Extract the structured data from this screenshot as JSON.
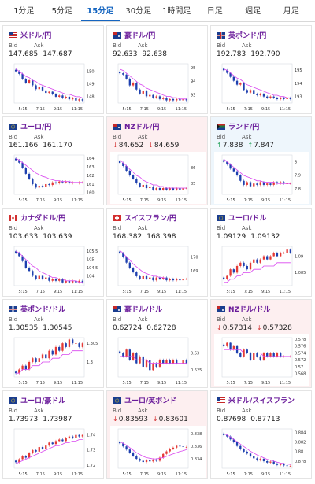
{
  "tabs": [
    {
      "label": "1分足",
      "active": false
    },
    {
      "label": "5分足",
      "active": false
    },
    {
      "label": "15分足",
      "active": true
    },
    {
      "label": "30分足",
      "active": false
    },
    {
      "label": "1時間足",
      "active": false
    },
    {
      "label": "日足",
      "active": false
    },
    {
      "label": "週足",
      "active": false
    },
    {
      "label": "月足",
      "active": false
    }
  ],
  "labels": {
    "bid": "Bid",
    "ask": "Ask"
  },
  "colors": {
    "up": "#1b9e52",
    "down": "#d32f2f",
    "accent": "#1565c0",
    "name": "#6a1b9a",
    "ma": "#d946ef",
    "candle_up": "#e53935",
    "candle_down": "#1e40af"
  },
  "cards": [
    {
      "name": "米ドル/円",
      "flag": "us",
      "bid": "147.685",
      "ask": "147.687",
      "trend": "none",
      "chart_data": {
        "type": "candlestick",
        "x_ticks": [
          "5:15",
          "7:15",
          "9:15",
          "11:15"
        ],
        "y_ticks": [
          "150",
          "149",
          "148"
        ],
        "ylim": [
          147.5,
          150.6
        ],
        "close": [
          150.0,
          149.8,
          149.4,
          149.1,
          149.3,
          148.9,
          148.6,
          148.8,
          148.5,
          148.3,
          148.4,
          148.2,
          148.0,
          148.1,
          147.9,
          148.0,
          147.8,
          147.9,
          147.7,
          147.8,
          147.7
        ],
        "ma": [
          150.2,
          150.0,
          149.8,
          149.6,
          149.5,
          149.3,
          149.2,
          149.0,
          148.9,
          148.8,
          148.7,
          148.6,
          148.5,
          148.4,
          148.3,
          148.2,
          148.2,
          148.1,
          148.0,
          148.0,
          147.9
        ]
      }
    },
    {
      "name": "豪ドル/円",
      "flag": "au",
      "bid": "92.633",
      "ask": "92.638",
      "trend": "none",
      "chart_data": {
        "type": "candlestick",
        "x_ticks": [
          "5:15",
          "7:15",
          "9:15",
          "11:15"
        ],
        "y_ticks": [
          "95",
          "94",
          "93"
        ],
        "ylim": [
          92.4,
          95.3
        ],
        "close": [
          94.6,
          94.5,
          94.2,
          93.7,
          93.9,
          93.4,
          93.1,
          93.3,
          92.9,
          93.0,
          92.8,
          92.9,
          92.7,
          92.8,
          92.6,
          92.7,
          92.6,
          92.7,
          92.6,
          92.7,
          92.6
        ],
        "ma": [
          94.9,
          94.8,
          94.6,
          94.4,
          94.2,
          94.0,
          93.8,
          93.7,
          93.5,
          93.4,
          93.3,
          93.2,
          93.1,
          93.0,
          92.9,
          92.9,
          92.8,
          92.8,
          92.7,
          92.7,
          92.7
        ]
      }
    },
    {
      "name": "英ポンド/円",
      "flag": "gb",
      "bid": "192.783",
      "ask": "192.790",
      "trend": "none",
      "chart_data": {
        "type": "candlestick",
        "x_ticks": [
          "5:15",
          "7:15",
          "9:15",
          "11:15"
        ],
        "y_ticks": [
          "195",
          "194",
          "193"
        ],
        "ylim": [
          192.5,
          195.5
        ],
        "close": [
          195.0,
          194.8,
          194.5,
          194.2,
          193.9,
          194.0,
          193.5,
          193.3,
          193.5,
          193.2,
          193.1,
          193.2,
          193.0,
          192.9,
          193.0,
          192.9,
          192.8,
          192.9,
          192.8,
          192.9,
          192.8
        ],
        "ma": [
          195.1,
          195.0,
          194.8,
          194.6,
          194.4,
          194.3,
          194.1,
          193.9,
          193.8,
          193.7,
          193.6,
          193.5,
          193.4,
          193.3,
          193.2,
          193.1,
          193.1,
          193.0,
          193.0,
          192.9,
          192.9
        ]
      }
    },
    {
      "name": "ユーロ/円",
      "flag": "eu",
      "bid": "161.166",
      "ask": "161.170",
      "trend": "none",
      "chart_data": {
        "type": "candlestick",
        "x_ticks": [
          "5:15",
          "7:15",
          "9:15",
          "11:15"
        ],
        "y_ticks": [
          "164",
          "163",
          "162",
          "161",
          "160"
        ],
        "ylim": [
          159.8,
          164.4
        ],
        "close": [
          163.8,
          163.5,
          162.9,
          162.2,
          161.6,
          161.0,
          160.6,
          160.8,
          160.7,
          161.0,
          160.9,
          161.2,
          161.1,
          161.3,
          161.2,
          161.3,
          161.1,
          161.2,
          161.1,
          161.2,
          161.2
        ],
        "ma": [
          164.0,
          163.8,
          163.5,
          163.2,
          162.9,
          162.6,
          162.3,
          162.1,
          161.9,
          161.8,
          161.6,
          161.5,
          161.4,
          161.4,
          161.3,
          161.3,
          161.3,
          161.2,
          161.2,
          161.2,
          161.2
        ]
      }
    },
    {
      "name": "NZドル/円",
      "flag": "nz",
      "bid": "84.652",
      "ask": "84.659",
      "trend": "down",
      "chart_data": {
        "type": "candlestick",
        "x_ticks": [
          "5:15",
          "7:15",
          "9:15",
          "11:15"
        ],
        "y_ticks": [
          "86",
          "85"
        ],
        "ylim": [
          84.3,
          86.8
        ],
        "close": [
          86.3,
          86.1,
          85.8,
          85.5,
          85.3,
          85.0,
          84.8,
          84.9,
          84.7,
          84.8,
          84.6,
          84.7,
          84.6,
          84.7,
          84.6,
          84.7,
          84.6,
          84.7,
          84.6,
          84.7,
          84.7
        ],
        "ma": [
          86.5,
          86.3,
          86.1,
          85.9,
          85.7,
          85.5,
          85.4,
          85.2,
          85.1,
          85.0,
          84.9,
          84.9,
          84.8,
          84.8,
          84.7,
          84.7,
          84.7,
          84.7,
          84.7,
          84.7,
          84.7
        ]
      }
    },
    {
      "name": "ランド/円",
      "flag": "za",
      "bid": "7.838",
      "ask": "7.847",
      "trend": "up",
      "chart_data": {
        "type": "candlestick",
        "x_ticks": [
          "5:15",
          "7:15",
          "9:15",
          "11:15"
        ],
        "y_ticks": [
          "8",
          "7.9",
          "7.8"
        ],
        "ylim": [
          7.76,
          8.05
        ],
        "close": [
          8.0,
          7.98,
          7.95,
          7.93,
          7.9,
          7.86,
          7.83,
          7.85,
          7.82,
          7.84,
          7.83,
          7.85,
          7.83,
          7.84,
          7.83,
          7.85,
          7.84,
          7.85,
          7.84,
          7.84,
          7.84
        ],
        "ma": [
          8.02,
          8.0,
          7.98,
          7.96,
          7.94,
          7.92,
          7.9,
          7.89,
          7.88,
          7.87,
          7.86,
          7.86,
          7.85,
          7.85,
          7.85,
          7.85,
          7.84,
          7.84,
          7.84,
          7.84,
          7.84
        ]
      }
    },
    {
      "name": "カナダドル/円",
      "flag": "ca",
      "bid": "103.633",
      "ask": "103.639",
      "trend": "none",
      "chart_data": {
        "type": "candlestick",
        "x_ticks": [
          "5:15",
          "7:15",
          "9:15",
          "11:15"
        ],
        "y_ticks": [
          "105.5",
          "105",
          "104.5",
          "104"
        ],
        "ylim": [
          103.4,
          105.8
        ],
        "close": [
          105.4,
          105.2,
          104.9,
          104.5,
          104.3,
          104.0,
          103.8,
          104.0,
          103.8,
          103.9,
          103.7,
          103.8,
          103.7,
          103.8,
          103.6,
          103.7,
          103.6,
          103.7,
          103.6,
          103.7,
          103.6
        ],
        "ma": [
          105.5,
          105.4,
          105.2,
          105.0,
          104.8,
          104.6,
          104.5,
          104.3,
          104.2,
          104.1,
          104.0,
          103.9,
          103.9,
          103.8,
          103.8,
          103.7,
          103.7,
          103.7,
          103.7,
          103.6,
          103.6
        ]
      }
    },
    {
      "name": "スイスフラン/円",
      "flag": "ch",
      "bid": "168.382",
      "ask": "168.398",
      "trend": "none",
      "chart_data": {
        "type": "candlestick",
        "x_ticks": [
          "5:15",
          "7:15",
          "9:15",
          "11:15"
        ],
        "y_ticks": [
          "170",
          "169"
        ],
        "ylim": [
          167.9,
          170.8
        ],
        "close": [
          170.3,
          170.0,
          169.6,
          169.2,
          168.9,
          168.6,
          168.4,
          168.6,
          168.4,
          168.5,
          168.3,
          168.5,
          168.4,
          168.5,
          168.3,
          168.4,
          168.3,
          168.4,
          168.3,
          168.4,
          168.4
        ],
        "ma": [
          170.5,
          170.3,
          170.0,
          169.8,
          169.5,
          169.3,
          169.1,
          168.9,
          168.8,
          168.7,
          168.6,
          168.6,
          168.5,
          168.5,
          168.4,
          168.4,
          168.4,
          168.4,
          168.4,
          168.4,
          168.4
        ]
      }
    },
    {
      "name": "ユーロ/ドル",
      "flag": "eu",
      "bid": "1.09129",
      "ask": "1.09132",
      "trend": "none",
      "chart_data": {
        "type": "candlestick",
        "x_ticks": [
          "5:15",
          "7:15",
          "9:15",
          "11:15"
        ],
        "y_ticks": [
          "1.09",
          "1.085"
        ],
        "ylim": [
          1.081,
          1.093
        ],
        "close": [
          1.083,
          1.084,
          1.086,
          1.085,
          1.087,
          1.088,
          1.087,
          1.086,
          1.088,
          1.089,
          1.088,
          1.089,
          1.09,
          1.089,
          1.09,
          1.091,
          1.09,
          1.091,
          1.091,
          1.092,
          1.091
        ],
        "ma": [
          1.082,
          1.082,
          1.083,
          1.083,
          1.084,
          1.084,
          1.085,
          1.085,
          1.085,
          1.086,
          1.086,
          1.086,
          1.087,
          1.087,
          1.087,
          1.087,
          1.088,
          1.088,
          1.088,
          1.088,
          1.088
        ]
      }
    },
    {
      "name": "英ポンド/ドル",
      "flag": "gb",
      "bid": "1.30535",
      "ask": "1.30545",
      "trend": "none",
      "chart_data": {
        "type": "candlestick",
        "x_ticks": [
          "5:15",
          "7:15",
          "9:15",
          "11:15"
        ],
        "y_ticks": [
          "1.305",
          "1.3"
        ],
        "ylim": [
          1.296,
          1.3065
        ],
        "close": [
          1.297,
          1.298,
          1.299,
          1.298,
          1.3,
          1.301,
          1.3,
          1.301,
          1.302,
          1.301,
          1.303,
          1.302,
          1.304,
          1.303,
          1.305,
          1.304,
          1.306,
          1.305,
          1.305,
          1.304,
          1.305
        ],
        "ma": [
          1.297,
          1.297,
          1.298,
          1.298,
          1.298,
          1.299,
          1.299,
          1.299,
          1.3,
          1.3,
          1.3,
          1.301,
          1.301,
          1.301,
          1.302,
          1.302,
          1.302,
          1.303,
          1.303,
          1.303,
          1.303
        ]
      }
    },
    {
      "name": "豪ドル/ドル",
      "flag": "au",
      "bid": "0.62724",
      "ask": "0.62728",
      "trend": "none",
      "chart_data": {
        "type": "candlestick",
        "x_ticks": [
          "5:15",
          "7:15",
          "9:15",
          "11:15"
        ],
        "y_ticks": [
          "0.63",
          "0.625"
        ],
        "ylim": [
          0.623,
          0.6345
        ],
        "close": [
          0.63,
          0.629,
          0.631,
          0.628,
          0.63,
          0.627,
          0.629,
          0.626,
          0.628,
          0.625,
          0.627,
          0.626,
          0.628,
          0.627,
          0.628,
          0.627,
          0.628,
          0.627,
          0.627,
          0.628,
          0.627
        ],
        "ma": [
          0.629,
          0.629,
          0.629,
          0.629,
          0.629,
          0.628,
          0.628,
          0.628,
          0.628,
          0.627,
          0.627,
          0.627,
          0.627,
          0.627,
          0.627,
          0.627,
          0.627,
          0.627,
          0.627,
          0.627,
          0.627
        ]
      }
    },
    {
      "name": "NZドル/ドル",
      "flag": "nz",
      "bid": "0.57314",
      "ask": "0.57328",
      "trend": "down",
      "chart_data": {
        "type": "candlestick",
        "x_ticks": [
          "5:15",
          "7:15",
          "9:15",
          "11:15"
        ],
        "y_ticks": [
          "0.578",
          "0.576",
          "0.574",
          "0.572",
          "0.57",
          "0.568"
        ],
        "ylim": [
          0.567,
          0.5785
        ],
        "close": [
          0.576,
          0.577,
          0.575,
          0.576,
          0.574,
          0.573,
          0.575,
          0.574,
          0.572,
          0.574,
          0.573,
          0.572,
          0.574,
          0.573,
          0.574,
          0.573,
          0.574,
          0.573,
          0.573,
          0.573,
          0.573
        ],
        "ma": [
          0.575,
          0.575,
          0.575,
          0.575,
          0.575,
          0.575,
          0.574,
          0.574,
          0.574,
          0.574,
          0.574,
          0.574,
          0.573,
          0.573,
          0.573,
          0.573,
          0.573,
          0.573,
          0.573,
          0.573,
          0.573
        ]
      }
    },
    {
      "name": "ユーロ/豪ドル",
      "flag": "eu",
      "bid": "1.73973",
      "ask": "1.73987",
      "trend": "none",
      "chart_data": {
        "type": "candlestick",
        "x_ticks": [
          "5:15",
          "7:15",
          "9:15",
          "11:15"
        ],
        "y_ticks": [
          "1.74",
          "1.73",
          "1.72"
        ],
        "ylim": [
          1.718,
          1.744
        ],
        "close": [
          1.722,
          1.724,
          1.726,
          1.725,
          1.728,
          1.73,
          1.729,
          1.732,
          1.731,
          1.733,
          1.735,
          1.734,
          1.736,
          1.737,
          1.736,
          1.738,
          1.739,
          1.738,
          1.74,
          1.739,
          1.74
        ],
        "ma": [
          1.721,
          1.722,
          1.723,
          1.724,
          1.725,
          1.726,
          1.727,
          1.728,
          1.729,
          1.73,
          1.731,
          1.732,
          1.733,
          1.733,
          1.734,
          1.735,
          1.735,
          1.736,
          1.736,
          1.737,
          1.737
        ]
      }
    },
    {
      "name": "ユーロ/英ポンド",
      "flag": "eu",
      "bid": "0.83593",
      "ask": "0.83601",
      "trend": "down",
      "chart_data": {
        "type": "candlestick",
        "x_ticks": [
          "5:15",
          "7:15",
          "9:15",
          "11:15"
        ],
        "y_ticks": [
          "0.838",
          "0.836",
          "0.834"
        ],
        "ylim": [
          0.8325,
          0.8388
        ],
        "close": [
          0.8365,
          0.836,
          0.8355,
          0.835,
          0.8345,
          0.834,
          0.8337,
          0.8335,
          0.8338,
          0.8336,
          0.8339,
          0.8337,
          0.8342,
          0.8348,
          0.8352,
          0.8356,
          0.8358,
          0.8361,
          0.836,
          0.8359,
          0.8359
        ],
        "ma": [
          0.8368,
          0.8365,
          0.8362,
          0.8358,
          0.8354,
          0.835,
          0.8347,
          0.8344,
          0.8342,
          0.8341,
          0.834,
          0.834,
          0.8341,
          0.8342,
          0.8344,
          0.8346,
          0.8348,
          0.835,
          0.8352,
          0.8353,
          0.8355
        ]
      }
    },
    {
      "name": "米ドル/スイスフラン",
      "flag": "us",
      "bid": "0.87698",
      "ask": "0.87713",
      "trend": "none",
      "chart_data": {
        "type": "candlestick",
        "x_ticks": [
          "5:15",
          "7:15",
          "9:15",
          "11:15"
        ],
        "y_ticks": [
          "0.884",
          "0.882",
          "0.88",
          "0.878"
        ],
        "ylim": [
          0.8765,
          0.8848
        ],
        "close": [
          0.8835,
          0.8832,
          0.8826,
          0.882,
          0.8812,
          0.8805,
          0.88,
          0.8796,
          0.879,
          0.8786,
          0.8782,
          0.8785,
          0.878,
          0.8777,
          0.8779,
          0.8775,
          0.8772,
          0.8774,
          0.8771,
          0.877,
          0.877
        ],
        "ma": [
          0.8838,
          0.8835,
          0.8831,
          0.8826,
          0.8821,
          0.8816,
          0.8811,
          0.8806,
          0.8801,
          0.8797,
          0.8793,
          0.879,
          0.8787,
          0.8784,
          0.8782,
          0.878,
          0.8778,
          0.8776,
          0.8775,
          0.8774,
          0.8773
        ]
      }
    }
  ]
}
